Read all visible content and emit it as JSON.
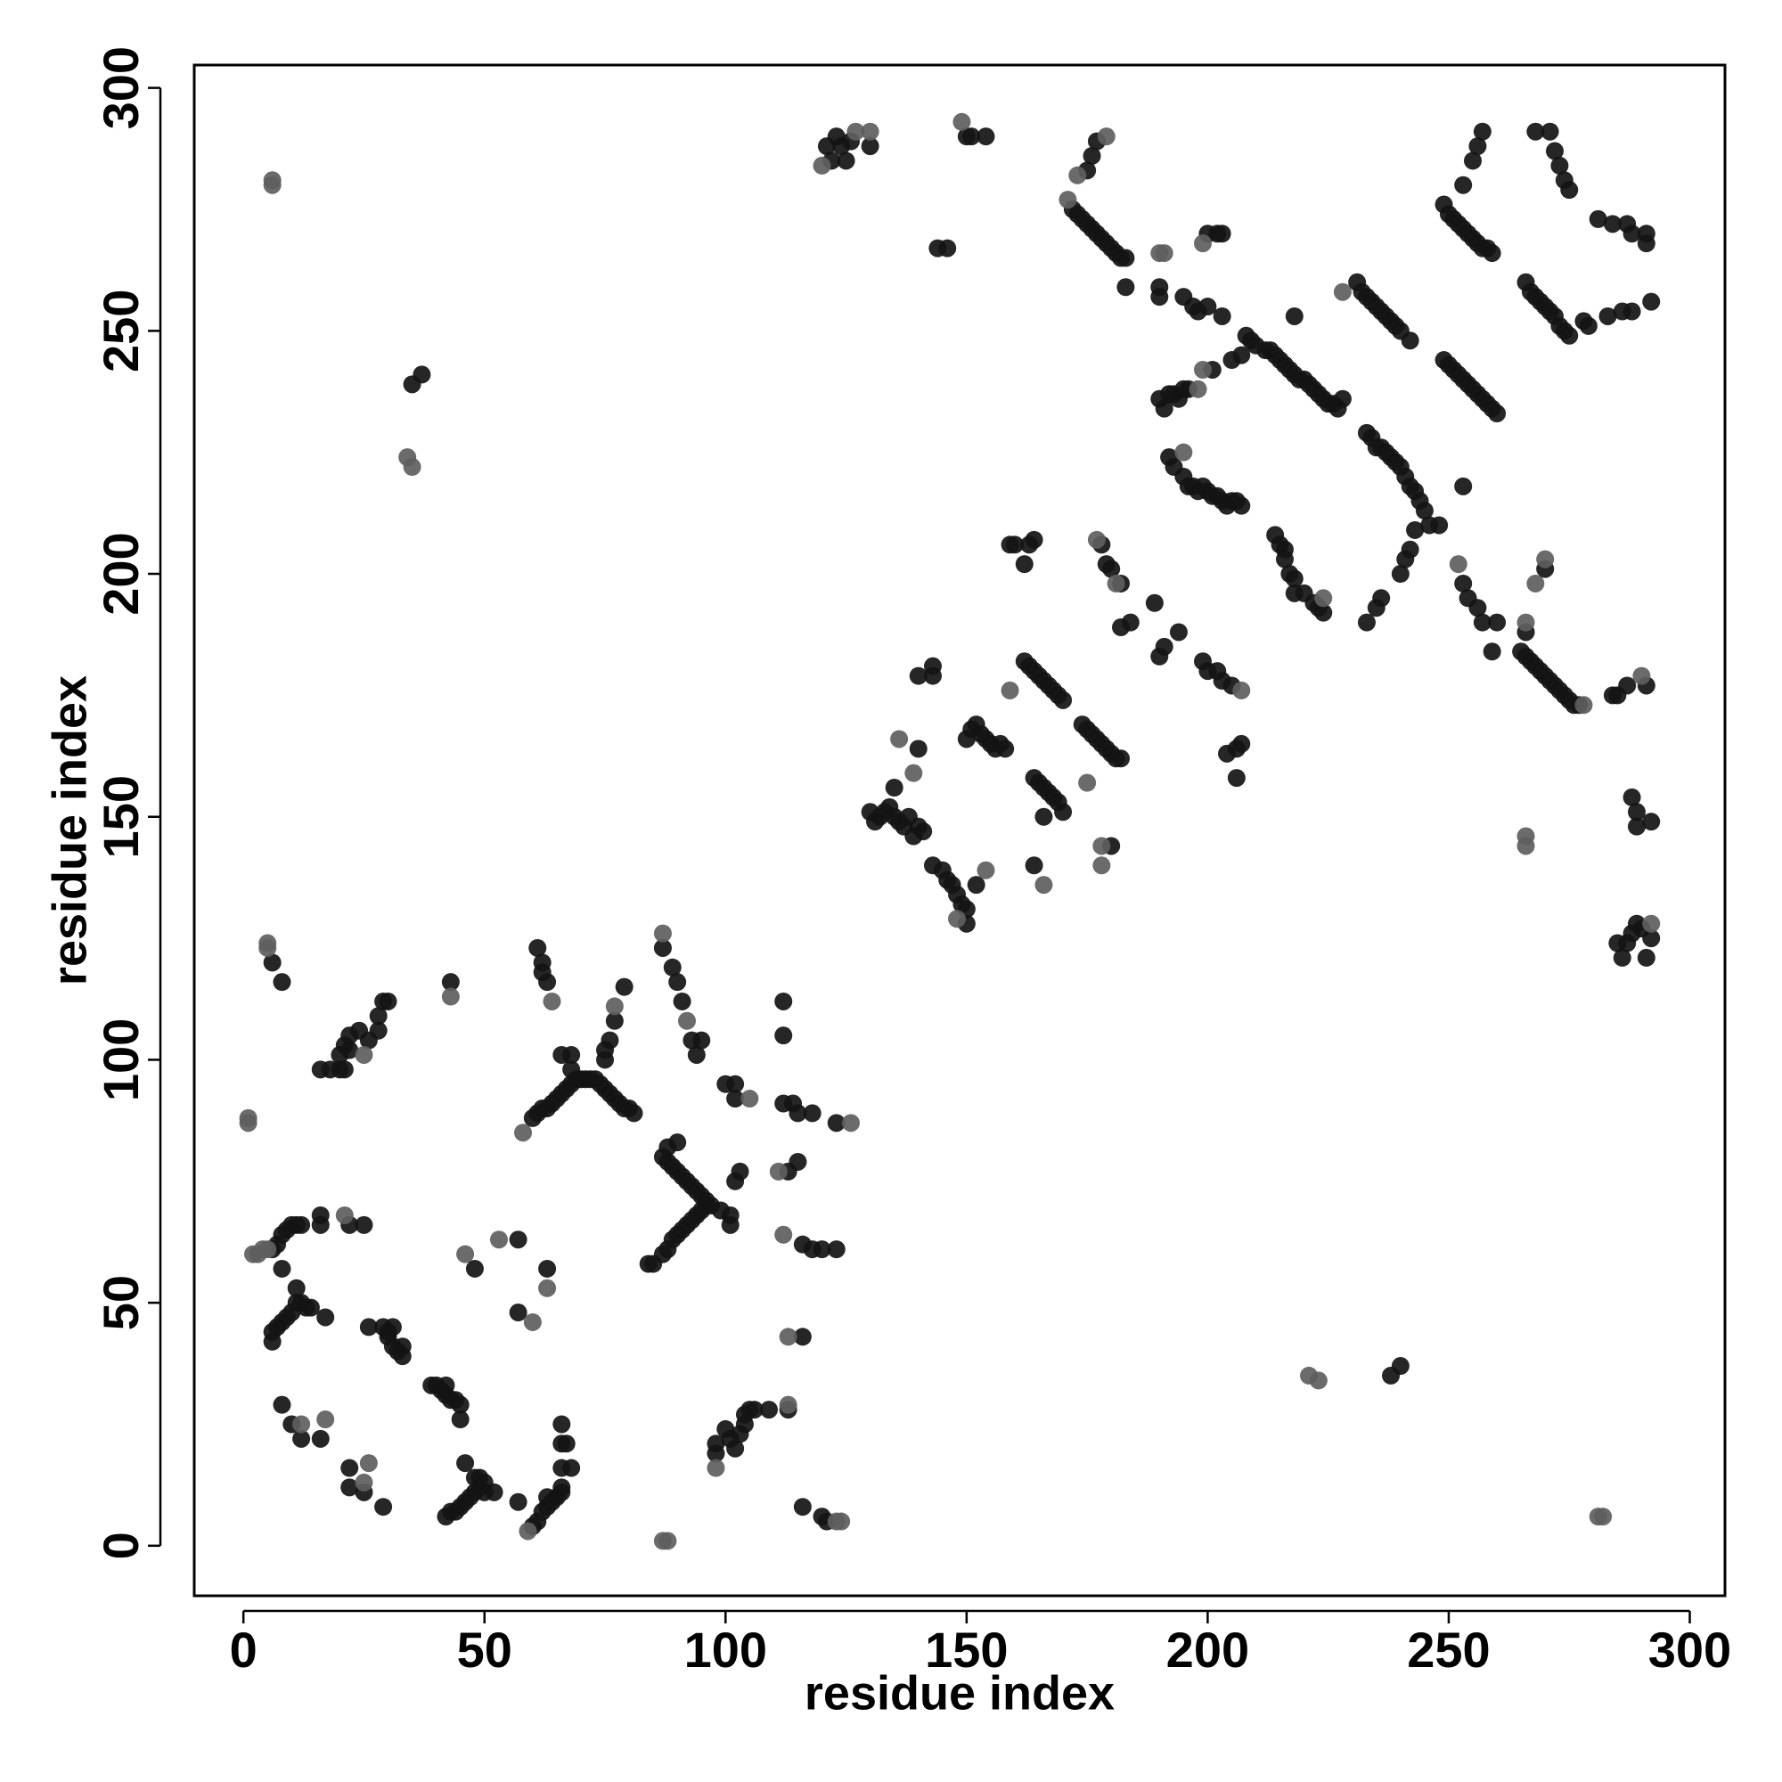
{
  "chart_data": {
    "type": "scatter",
    "xlabel": "residue index",
    "ylabel": "residue index",
    "xlim": [
      -10.2,
      307.3
    ],
    "ylim": [
      -10.3,
      304.7
    ],
    "xticks": [
      0,
      50,
      100,
      150,
      200,
      250,
      300
    ],
    "yticks": [
      0,
      50,
      100,
      150,
      200,
      250,
      300
    ],
    "series": [
      {
        "color": "#141414",
        "x": [
          6,
          8,
          6,
          7,
          8,
          9,
          10,
          11,
          12,
          8,
          6,
          6,
          7,
          8,
          9,
          10,
          11,
          12,
          13,
          14,
          17,
          11,
          8,
          10,
          12,
          16,
          16,
          18,
          20,
          21,
          20,
          21,
          22,
          22,
          24,
          26,
          28,
          28,
          29,
          30,
          16,
          16,
          22,
          25,
          22,
          22,
          25,
          29,
          26,
          29,
          30,
          31,
          32,
          33,
          33,
          30,
          31,
          39,
          40,
          41,
          42,
          43,
          44,
          45,
          45,
          42,
          43,
          35,
          37,
          42,
          43,
          44,
          45,
          46,
          47,
          48,
          49,
          50,
          52,
          46,
          48,
          49,
          50,
          48,
          57,
          57,
          57,
          60,
          61,
          62,
          63,
          64,
          65,
          66,
          66,
          63,
          66,
          66,
          67,
          68,
          66,
          61,
          62,
          62,
          63,
          63,
          60,
          61,
          62,
          63,
          64,
          65,
          66,
          67,
          68,
          69,
          70,
          71,
          72,
          73,
          74,
          75,
          76,
          77,
          78,
          79,
          80,
          81,
          66,
          68,
          68,
          75,
          75,
          76,
          77,
          79,
          84,
          85,
          87,
          88,
          89,
          90,
          91,
          92,
          93,
          94,
          95,
          96,
          97,
          99,
          101,
          87,
          88,
          89,
          90,
          91,
          92,
          93,
          94,
          95,
          96,
          88,
          90,
          87,
          89,
          90,
          91,
          93,
          94,
          95,
          98,
          98,
          100,
          101,
          102,
          103,
          104,
          104,
          105,
          106,
          109,
          100,
          102,
          102,
          103,
          102,
          101,
          112,
          112,
          112,
          114,
          115,
          118,
          123,
          113,
          115,
          116,
          118,
          120,
          123,
          116,
          113,
          116,
          120,
          121,
          121,
          122,
          123,
          124,
          125,
          126,
          130,
          130,
          131,
          132,
          133,
          134,
          135,
          136,
          137,
          138,
          140,
          141,
          139,
          135,
          140,
          140,
          143,
          143,
          143,
          145,
          146,
          147,
          148,
          149,
          150,
          150,
          152,
          144,
          146,
          150,
          151,
          154,
          150,
          151,
          152,
          153,
          154,
          155,
          156,
          157,
          158,
          159,
          160,
          163,
          164,
          162,
          162,
          163,
          164,
          165,
          166,
          167,
          168,
          169,
          170,
          164,
          165,
          166,
          167,
          168,
          169,
          170,
          166,
          164,
          172,
          173,
          174,
          175,
          176,
          177,
          178,
          179,
          180,
          181,
          182,
          183,
          183,
          175,
          176,
          177,
          174,
          175,
          176,
          177,
          178,
          179,
          180,
          181,
          182,
          178,
          179,
          180,
          182,
          182,
          184,
          180,
          189,
          190,
          191,
          190,
          190,
          190,
          191,
          192,
          193,
          194,
          195,
          196,
          192,
          193,
          195,
          196,
          197,
          198,
          199,
          200,
          201,
          202,
          203,
          204,
          205,
          206,
          207,
          194,
          199,
          200,
          202,
          203,
          205,
          204,
          206,
          206,
          207,
          195,
          197,
          198,
          200,
          203,
          201,
          200,
          202,
          203,
          205,
          207,
          208,
          209,
          210,
          212,
          213,
          214,
          215,
          216,
          217,
          218,
          219,
          220,
          221,
          222,
          223,
          224,
          225,
          226,
          227,
          228,
          218,
          214,
          215,
          216,
          216,
          217,
          218,
          218,
          220,
          222,
          223,
          224,
          231,
          232,
          233,
          234,
          235,
          236,
          237,
          238,
          239,
          240,
          242,
          233,
          234,
          235,
          236,
          237,
          238,
          239,
          240,
          241,
          242,
          243,
          244,
          245,
          233,
          235,
          236,
          240,
          241,
          242,
          243,
          246,
          248,
          249,
          250,
          251,
          252,
          253,
          254,
          255,
          256,
          257,
          258,
          259,
          253,
          255,
          256,
          257,
          249,
          250,
          251,
          252,
          253,
          254,
          255,
          256,
          257,
          258,
          259,
          260,
          253,
          253,
          254,
          256,
          257,
          259,
          260,
          266,
          267,
          268,
          269,
          270,
          271,
          272,
          273,
          274,
          275,
          265,
          266,
          267,
          268,
          269,
          270,
          271,
          272,
          273,
          274,
          275,
          276,
          277,
          266,
          270,
          268,
          271,
          272,
          273,
          274,
          275,
          278,
          279,
          281,
          284,
          283,
          286,
          288,
          287,
          288,
          291,
          291,
          292,
          284,
          285,
          287,
          291,
          288,
          289,
          289,
          292,
          285,
          286,
          287,
          288,
          289,
          290,
          291,
          292,
          238,
          240
        ],
        "values": [
          120,
          116,
          61,
          62,
          64,
          65,
          66,
          66,
          66,
          57,
          42,
          44,
          45,
          46,
          47,
          48,
          50,
          50,
          49,
          49,
          47,
          53,
          29,
          25,
          22,
          22,
          98,
          98,
          98,
          98,
          101,
          103,
          102,
          105,
          106,
          104,
          106,
          109,
          112,
          112,
          68,
          66,
          66,
          66,
          16,
          12,
          11,
          8,
          45,
          45,
          43,
          41,
          40,
          41,
          39,
          44,
          45,
          33,
          33,
          32,
          31,
          30,
          30,
          29,
          26,
          33,
          116,
          239,
          241,
          6,
          7,
          7,
          8,
          9,
          10,
          11,
          12,
          11,
          11,
          17,
          14,
          14,
          13,
          57,
          63,
          48,
          9,
          4,
          5,
          7,
          8,
          9,
          10,
          11,
          12,
          10,
          25,
          21,
          21,
          16,
          16,
          123,
          120,
          118,
          116,
          57,
          88,
          89,
          90,
          90,
          91,
          92,
          93,
          94,
          95,
          96,
          96,
          96,
          96,
          96,
          95,
          94,
          93,
          92,
          91,
          90,
          90,
          89,
          101,
          101,
          98,
          100,
          102,
          104,
          108,
          115,
          58,
          58,
          60,
          61,
          63,
          64,
          65,
          66,
          67,
          68,
          69,
          70,
          70,
          69,
          68,
          80,
          79,
          78,
          77,
          76,
          75,
          74,
          73,
          72,
          71,
          82,
          83,
          123,
          119,
          116,
          112,
          104,
          101,
          104,
          19,
          21,
          24,
          22,
          20,
          23,
          25,
          27,
          28,
          28,
          28,
          95,
          95,
          92,
          77,
          75,
          66,
          112,
          105,
          91,
          91,
          89,
          89,
          87,
          77,
          79,
          62,
          61,
          61,
          61,
          43,
          28,
          8,
          6,
          5,
          288,
          285,
          290,
          288,
          285,
          289,
          288,
          151,
          149,
          150,
          151,
          152,
          150,
          149,
          148,
          150,
          148,
          147,
          146,
          156,
          164,
          179,
          181,
          179,
          140,
          139,
          137,
          136,
          134,
          132,
          131,
          128,
          136,
          267,
          267,
          290,
          290,
          290,
          166,
          168,
          169,
          167,
          166,
          165,
          164,
          165,
          164,
          206,
          206,
          206,
          207,
          202,
          182,
          181,
          180,
          179,
          178,
          177,
          176,
          175,
          174,
          158,
          157,
          156,
          155,
          154,
          153,
          151,
          150,
          140,
          275,
          274,
          273,
          272,
          271,
          270,
          269,
          268,
          267,
          266,
          265,
          265,
          259,
          283,
          286,
          289,
          169,
          168,
          167,
          166,
          165,
          164,
          163,
          162,
          162,
          206,
          202,
          201,
          198,
          189,
          190,
          144,
          194,
          183,
          185,
          259,
          257,
          236,
          234,
          237,
          237,
          236,
          238,
          238,
          224,
          222,
          220,
          218,
          218,
          217,
          218,
          217,
          216,
          216,
          215,
          214,
          215,
          215,
          214,
          188,
          182,
          180,
          180,
          178,
          177,
          163,
          164,
          158,
          165,
          257,
          255,
          254,
          255,
          253,
          242,
          270,
          270,
          270,
          244,
          245,
          249,
          248,
          247,
          246,
          246,
          245,
          244,
          243,
          242,
          241,
          240,
          240,
          239,
          238,
          237,
          236,
          235,
          235,
          234,
          236,
          253,
          208,
          206,
          205,
          203,
          200,
          199,
          196,
          196,
          194,
          193,
          192,
          260,
          258,
          257,
          256,
          255,
          254,
          253,
          252,
          251,
          250,
          248,
          229,
          228,
          226,
          226,
          225,
          224,
          223,
          222,
          220,
          218,
          217,
          215,
          213,
          190,
          193,
          195,
          200,
          203,
          205,
          209,
          210,
          210,
          276,
          274,
          273,
          272,
          271,
          270,
          269,
          268,
          267,
          267,
          266,
          280,
          285,
          288,
          291,
          244,
          243,
          242,
          241,
          240,
          239,
          238,
          237,
          236,
          235,
          234,
          233,
          218,
          198,
          195,
          193,
          190,
          184,
          190,
          260,
          258,
          257,
          256,
          255,
          254,
          253,
          251,
          250,
          249,
          184,
          183,
          182,
          181,
          180,
          179,
          178,
          177,
          176,
          175,
          174,
          173,
          173,
          188,
          201,
          291,
          291,
          287,
          284,
          281,
          279,
          252,
          251,
          273,
          272,
          253,
          254,
          254,
          272,
          270,
          270,
          268,
          256,
          175,
          175,
          177,
          177,
          154,
          151,
          148,
          149,
          124,
          121,
          124,
          126,
          128,
          127,
          121,
          125,
          35,
          37
        ]
      },
      {
        "color": "#5e5e5e",
        "x": [
          1,
          1,
          6,
          6,
          5,
          5,
          2,
          3,
          4,
          5,
          12,
          17,
          25,
          21,
          26,
          25,
          43,
          34,
          35,
          46,
          53,
          60,
          59,
          64,
          63,
          58,
          77,
          87,
          92,
          87,
          88,
          98,
          105,
          126,
          111,
          112,
          113,
          113,
          123,
          124,
          120,
          127,
          130,
          136,
          139,
          148,
          154,
          149,
          159,
          166,
          171,
          173,
          179,
          175,
          177,
          181,
          178,
          178,
          190,
          191,
          198,
          195,
          207,
          199,
          199,
          224,
          228,
          252,
          278,
          266,
          268,
          270,
          266,
          266,
          290,
          292,
          281,
          282,
          221,
          223
        ],
        "values": [
          88,
          87,
          281,
          280,
          124,
          123,
          60,
          60,
          61,
          61,
          25,
          26,
          101,
          68,
          17,
          13,
          113,
          224,
          222,
          60,
          63,
          46,
          3,
          112,
          53,
          85,
          111,
          126,
          108,
          1,
          1,
          16,
          92,
          87,
          77,
          64,
          43,
          29,
          5,
          5,
          284,
          291,
          291,
          166,
          159,
          129,
          139,
          293,
          176,
          136,
          277,
          282,
          290,
          157,
          207,
          198,
          144,
          140,
          266,
          266,
          238,
          225,
          176,
          242,
          268,
          195,
          258,
          202,
          173,
          190,
          198,
          203,
          146,
          144,
          179,
          128,
          6,
          6,
          35,
          34
        ]
      }
    ]
  }
}
